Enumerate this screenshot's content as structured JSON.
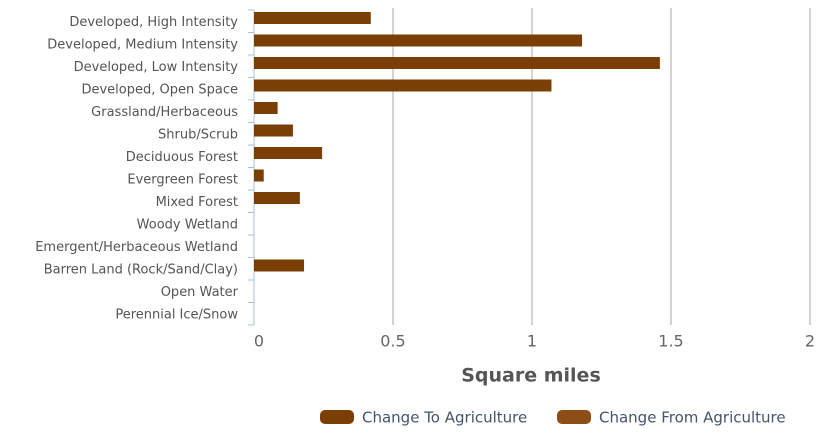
{
  "chart_data": {
    "type": "bar",
    "orientation": "horizontal",
    "x_label": "Square miles",
    "categories": [
      "Developed, High Intensity",
      "Developed, Medium Intensity",
      "Developed, Low Intensity",
      "Developed, Open Space",
      "Grassland/Herbaceous",
      "Shrub/Scrub",
      "Deciduous Forest",
      "Evergreen Forest",
      "Mixed Forest",
      "Woody Wetland",
      "Emergent/Herbaceous Wetland",
      "Barren Land (Rock/Sand/Clay)",
      "Open Water",
      "Perennial Ice/Snow"
    ],
    "series": [
      {
        "name": "Change To Agriculture",
        "color": "#7b3f05",
        "values": [
          0.42,
          1.18,
          1.46,
          1.07,
          0.085,
          0.14,
          0.245,
          0.035,
          0.165,
          0,
          0,
          0.18,
          0,
          0
        ]
      },
      {
        "name": "Change From Agriculture",
        "color": "#8c4d16",
        "values": [
          0,
          0,
          0,
          0,
          0,
          0,
          0,
          0,
          0,
          0,
          0,
          0,
          0,
          0
        ]
      }
    ],
    "xlim": [
      0,
      2
    ],
    "xticks": [
      0,
      0.5,
      1,
      1.5,
      2
    ],
    "grid": true,
    "legend": "bottom-right"
  }
}
